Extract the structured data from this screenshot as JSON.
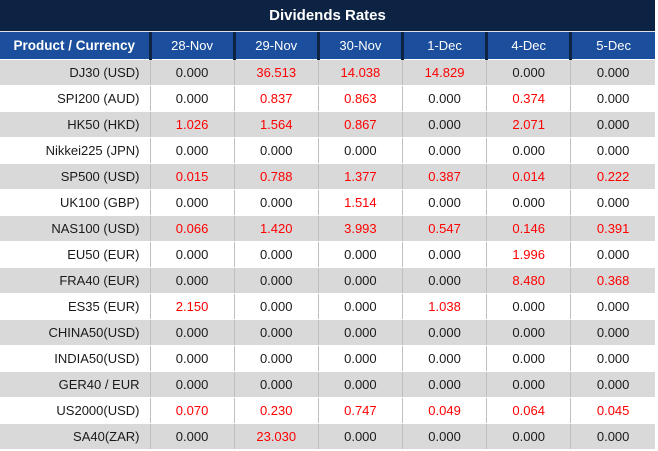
{
  "title": "Dividends Rates",
  "columns": [
    "Product / Currency",
    "28-Nov",
    "29-Nov",
    "30-Nov",
    "1-Dec",
    "4-Dec",
    "5-Dec"
  ],
  "rows": [
    {
      "label": "DJ30 (USD)",
      "values": [
        "0.000",
        "36.513",
        "14.038",
        "14.829",
        "0.000",
        "0.000"
      ],
      "red": [
        false,
        true,
        true,
        true,
        false,
        false
      ]
    },
    {
      "label": "SPI200 (AUD)",
      "values": [
        "0.000",
        "0.837",
        "0.863",
        "0.000",
        "0.374",
        "0.000"
      ],
      "red": [
        false,
        true,
        true,
        false,
        true,
        false
      ]
    },
    {
      "label": "HK50 (HKD)",
      "values": [
        "1.026",
        "1.564",
        "0.867",
        "0.000",
        "2.071",
        "0.000"
      ],
      "red": [
        true,
        true,
        true,
        false,
        true,
        false
      ]
    },
    {
      "label": "Nikkei225 (JPN)",
      "values": [
        "0.000",
        "0.000",
        "0.000",
        "0.000",
        "0.000",
        "0.000"
      ],
      "red": [
        false,
        false,
        false,
        false,
        false,
        false
      ]
    },
    {
      "label": "SP500 (USD)",
      "values": [
        "0.015",
        "0.788",
        "1.377",
        "0.387",
        "0.014",
        "0.222"
      ],
      "red": [
        true,
        true,
        true,
        true,
        true,
        true
      ]
    },
    {
      "label": "UK100 (GBP)",
      "values": [
        "0.000",
        "0.000",
        "1.514",
        "0.000",
        "0.000",
        "0.000"
      ],
      "red": [
        false,
        false,
        true,
        false,
        false,
        false
      ]
    },
    {
      "label": "NAS100 (USD)",
      "values": [
        "0.066",
        "1.420",
        "3.993",
        "0.547",
        "0.146",
        "0.391"
      ],
      "red": [
        true,
        true,
        true,
        true,
        true,
        true
      ]
    },
    {
      "label": "EU50 (EUR)",
      "values": [
        "0.000",
        "0.000",
        "0.000",
        "0.000",
        "1.996",
        "0.000"
      ],
      "red": [
        false,
        false,
        false,
        false,
        true,
        false
      ]
    },
    {
      "label": "FRA40 (EUR)",
      "values": [
        "0.000",
        "0.000",
        "0.000",
        "0.000",
        "8.480",
        "0.368"
      ],
      "red": [
        false,
        false,
        false,
        false,
        true,
        true
      ]
    },
    {
      "label": "ES35 (EUR)",
      "values": [
        "2.150",
        "0.000",
        "0.000",
        "1.038",
        "0.000",
        "0.000"
      ],
      "red": [
        true,
        false,
        false,
        true,
        false,
        false
      ]
    },
    {
      "label": "CHINA50(USD)",
      "values": [
        "0.000",
        "0.000",
        "0.000",
        "0.000",
        "0.000",
        "0.000"
      ],
      "red": [
        false,
        false,
        false,
        false,
        false,
        false
      ]
    },
    {
      "label": "INDIA50(USD)",
      "values": [
        "0.000",
        "0.000",
        "0.000",
        "0.000",
        "0.000",
        "0.000"
      ],
      "red": [
        false,
        false,
        false,
        false,
        false,
        false
      ]
    },
    {
      "label": "GER40 / EUR",
      "values": [
        "0.000",
        "0.000",
        "0.000",
        "0.000",
        "0.000",
        "0.000"
      ],
      "red": [
        false,
        false,
        false,
        false,
        false,
        false
      ]
    },
    {
      "label": "US2000(USD)",
      "values": [
        "0.070",
        "0.230",
        "0.747",
        "0.049",
        "0.064",
        "0.045"
      ],
      "red": [
        true,
        true,
        true,
        true,
        true,
        true
      ]
    },
    {
      "label": "SA40(ZAR)",
      "values": [
        "0.000",
        "23.030",
        "0.000",
        "0.000",
        "0.000",
        "0.000"
      ],
      "red": [
        false,
        true,
        false,
        false,
        false,
        false
      ]
    }
  ],
  "colors": {
    "title_bar_bg": "#0d2344",
    "header_bg": "#1b4e9c",
    "header_divider": "#0d2344",
    "row_alt_bg": "#d9d9d9",
    "grid_line": "#bfbfbf",
    "value_red": "#ff0000",
    "text_dark": "#1a1a1a",
    "header_text": "#ffffff"
  }
}
